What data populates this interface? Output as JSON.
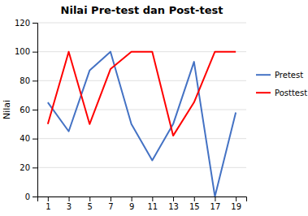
{
  "chart_data": {
    "type": "line",
    "title": "Nilai Pre-test dan Post-test",
    "ylabel": "Nilai",
    "x": [
      1,
      3,
      5,
      7,
      9,
      11,
      13,
      15,
      17,
      19
    ],
    "series": [
      {
        "name": "Pretest",
        "color": "#4472C4",
        "values": [
          65,
          45,
          87,
          100,
          50,
          25,
          50,
          93,
          0,
          58
        ]
      },
      {
        "name": "Posttest",
        "color": "#FF0000",
        "values": [
          50,
          100,
          50,
          88,
          100,
          100,
          42,
          65,
          100,
          100
        ]
      }
    ],
    "xlim": [
      0,
      20
    ],
    "xticks": [
      1,
      3,
      5,
      7,
      9,
      11,
      13,
      15,
      17,
      19
    ],
    "ylim": [
      0,
      120
    ],
    "yticks": [
      0,
      20,
      40,
      60,
      80,
      100,
      120
    ],
    "grid": true,
    "legend": "right"
  }
}
